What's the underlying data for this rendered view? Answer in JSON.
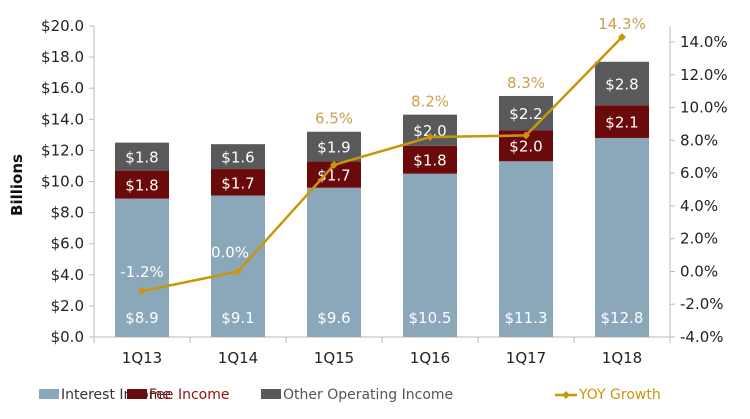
{
  "chart_data": {
    "type": "bar",
    "stacked": true,
    "categories": [
      "1Q13",
      "1Q14",
      "1Q15",
      "1Q16",
      "1Q17",
      "1Q18"
    ],
    "series": [
      {
        "name": "Interest Income",
        "color": "#8BA7BA",
        "values": [
          8.9,
          9.1,
          9.6,
          10.5,
          11.3,
          12.8
        ],
        "labels": [
          "$8.9",
          "$9.1",
          "$9.6",
          "$10.5",
          "$11.3",
          "$12.8"
        ]
      },
      {
        "name": "Fee Income",
        "color": "#6B0A0A",
        "values": [
          1.8,
          1.7,
          1.7,
          1.8,
          2.0,
          2.1
        ],
        "labels": [
          "$1.8",
          "$1.7",
          "$1.7",
          "$1.8",
          "$2.0",
          "$2.1"
        ]
      },
      {
        "name": "Other Operating Income",
        "color": "#58595B",
        "values": [
          1.8,
          1.6,
          1.9,
          2.0,
          2.2,
          2.8
        ],
        "labels": [
          "$1.8",
          "$1.6",
          "$1.9",
          "$2.0",
          "$2.2",
          "$2.8"
        ]
      }
    ],
    "line_series": {
      "name": "YOY Growth",
      "color": "#C8960C",
      "axis": "right",
      "values": [
        -1.2,
        0.0,
        6.5,
        8.2,
        8.3,
        14.3
      ],
      "labels": [
        "-1.2%",
        "0.0%",
        "6.5%",
        "8.2%",
        "8.3%",
        "14.3%"
      ]
    },
    "ylabel": "Billions",
    "ylim": [
      0,
      20
    ],
    "y_ticks": [
      "$0.0",
      "$2.0",
      "$4.0",
      "$6.0",
      "$8.0",
      "$10.0",
      "$12.0",
      "$14.0",
      "$16.0",
      "$18.0",
      "$20.0"
    ],
    "y2lim": [
      -4,
      14
    ],
    "y2_ticks": [
      "-4.0%",
      "-2.0%",
      "0.0%",
      "2.0%",
      "4.0%",
      "6.0%",
      "8.0%",
      "10.0%",
      "12.0%",
      "14.0%"
    ],
    "grid": false,
    "legend": "bottom"
  }
}
